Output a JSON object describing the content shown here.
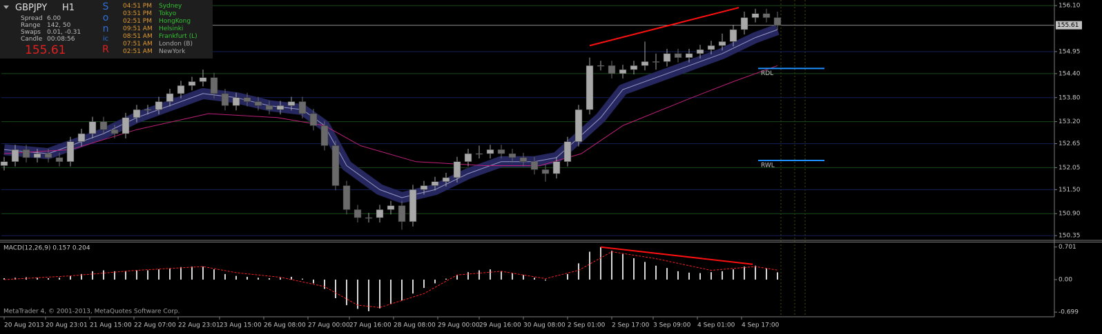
{
  "panel": {
    "symbol": "GBPJPY",
    "timeframe": "H1",
    "stats": [
      [
        "Spread",
        "6.00"
      ],
      [
        "Range",
        "142, 50"
      ],
      [
        "Swaps",
        "0.01, -0.31"
      ],
      [
        "Candle",
        "00:08:56"
      ]
    ],
    "price": "155.61",
    "brand": [
      {
        "text": "S",
        "color": "#2f6fd6"
      },
      {
        "text": "o",
        "color": "#2f6fd6"
      },
      {
        "text": "n",
        "color": "#2f6fd6"
      },
      {
        "text": "ic",
        "color": "#2f6fd6"
      },
      {
        "text": "R",
        "color": "#e02020"
      }
    ],
    "sessions": [
      {
        "time": "04:51 PM",
        "name": "Sydney",
        "color": "#33c033"
      },
      {
        "time": "03:51 PM",
        "name": "Tokyo",
        "color": "#33c033"
      },
      {
        "time": "02:51 PM",
        "name": "HongKong",
        "color": "#33c033"
      },
      {
        "time": "09:51 AM",
        "name": "Helsinki",
        "color": "#33c033"
      },
      {
        "time": "08:51 AM",
        "name": "Frankfurt (L)",
        "color": "#33c033"
      },
      {
        "time": "07:51 AM",
        "name": "London (B)",
        "color": "#a8a8a8"
      },
      {
        "time": "02:51 AM",
        "name": "NewYork",
        "color": "#a8a8a8"
      }
    ]
  },
  "footer": "MetaTrader 4, © 2001-2013, MetaQuotes Software Corp.",
  "chart_data": [
    {
      "type": "candlestick",
      "x": [
        0,
        4,
        8,
        12,
        16,
        20,
        24,
        28,
        32,
        36,
        40,
        44,
        48,
        52,
        56,
        60,
        64,
        68,
        72,
        76,
        80,
        84,
        88,
        92,
        96,
        100,
        104,
        108,
        112,
        116,
        120,
        124,
        128,
        132,
        136,
        140,
        144,
        148,
        152,
        156,
        160,
        164,
        168,
        172,
        176,
        180,
        184,
        188,
        192,
        196,
        200,
        204,
        208,
        212,
        216,
        220,
        224,
        228,
        232,
        236,
        240,
        244,
        248,
        252,
        256,
        260,
        264,
        268,
        272,
        276,
        280
      ],
      "open": [
        152.1,
        152.2,
        152.5,
        152.3,
        152.4,
        152.3,
        152.2,
        152.7,
        152.9,
        153.2,
        153.0,
        152.9,
        153.3,
        153.5,
        153.5,
        153.7,
        153.9,
        154.1,
        154.2,
        154.3,
        153.9,
        153.6,
        153.8,
        153.7,
        153.6,
        153.5,
        153.6,
        153.7,
        153.4,
        153.1,
        152.6,
        151.6,
        151.0,
        150.8,
        150.8,
        151.0,
        151.1,
        150.7,
        151.5,
        151.6,
        151.7,
        151.8,
        152.2,
        152.4,
        152.4,
        152.5,
        152.4,
        152.3,
        152.2,
        152.0,
        151.9,
        152.2,
        152.7,
        153.5,
        154.6,
        154.6,
        154.4,
        154.5,
        154.6,
        154.7,
        154.7,
        154.9,
        154.8,
        154.9,
        155.0,
        155.1,
        155.2,
        155.5,
        155.8,
        155.9,
        155.8
      ],
      "high": [
        152.32,
        152.62,
        152.62,
        152.52,
        152.52,
        152.42,
        152.82,
        153.02,
        153.32,
        153.32,
        153.12,
        153.42,
        153.62,
        153.62,
        153.82,
        154.02,
        154.22,
        154.32,
        154.5,
        154.42,
        154.02,
        153.92,
        153.92,
        153.82,
        153.72,
        153.72,
        153.82,
        153.82,
        153.52,
        153.22,
        152.72,
        151.72,
        151.12,
        150.92,
        151.12,
        151.22,
        151.22,
        151.62,
        151.72,
        151.82,
        151.92,
        152.32,
        152.52,
        152.6,
        152.62,
        152.62,
        152.52,
        152.42,
        152.32,
        152.12,
        152.32,
        152.82,
        153.62,
        154.8,
        154.72,
        154.72,
        154.62,
        154.72,
        155.2,
        154.9,
        155.02,
        155.02,
        155.02,
        155.12,
        155.22,
        155.4,
        155.62,
        155.95,
        156.02,
        156.02,
        155.95
      ],
      "low": [
        151.98,
        152.08,
        152.18,
        152.18,
        152.18,
        152.08,
        152.08,
        152.58,
        152.78,
        152.88,
        152.78,
        152.78,
        153.18,
        153.38,
        153.38,
        153.58,
        153.78,
        153.98,
        154.08,
        153.78,
        153.48,
        153.48,
        153.58,
        153.48,
        153.38,
        153.38,
        153.48,
        153.28,
        152.98,
        152.48,
        151.48,
        150.88,
        150.68,
        150.68,
        150.68,
        150.88,
        150.5,
        150.58,
        151.38,
        151.48,
        151.58,
        151.68,
        152.08,
        152.28,
        152.28,
        152.28,
        152.18,
        152.08,
        151.88,
        151.7,
        151.78,
        152.08,
        152.58,
        153.38,
        154.48,
        154.28,
        154.28,
        154.38,
        154.48,
        154.5,
        154.58,
        154.68,
        154.68,
        154.78,
        154.88,
        154.98,
        155.08,
        155.38,
        155.68,
        155.68,
        155.5
      ],
      "close": [
        152.2,
        152.5,
        152.3,
        152.4,
        152.3,
        152.2,
        152.7,
        152.9,
        153.2,
        153.0,
        152.9,
        153.3,
        153.5,
        153.5,
        153.7,
        153.9,
        154.1,
        154.2,
        154.3,
        153.9,
        153.6,
        153.8,
        153.7,
        153.6,
        153.5,
        153.6,
        153.7,
        153.4,
        153.1,
        152.6,
        151.6,
        151.0,
        150.8,
        150.8,
        151.0,
        151.1,
        150.7,
        151.5,
        151.6,
        151.7,
        151.8,
        152.2,
        152.4,
        152.4,
        152.5,
        152.4,
        152.3,
        152.2,
        152.0,
        151.9,
        152.2,
        152.7,
        153.5,
        154.6,
        154.6,
        154.4,
        154.5,
        154.6,
        154.7,
        154.7,
        154.9,
        154.8,
        154.9,
        155.0,
        155.1,
        155.2,
        155.5,
        155.8,
        155.9,
        155.8,
        155.61
      ],
      "up_color": "#a8a8a8",
      "down_color": "#6a6a6a",
      "lines": [
        {
          "style": "band",
          "color": "#25275e",
          "x": [
            0,
            16,
            24,
            36,
            48,
            60,
            72,
            84,
            96,
            108,
            116,
            124,
            136,
            144,
            156,
            168,
            180,
            192,
            200,
            208,
            216,
            224,
            236,
            248,
            260,
            272,
            280
          ],
          "values": [
            152.5,
            152.4,
            152.6,
            152.9,
            153.3,
            153.6,
            153.9,
            153.8,
            153.6,
            153.5,
            153.1,
            152.1,
            151.5,
            151.3,
            151.5,
            151.9,
            152.2,
            152.2,
            152.3,
            152.8,
            153.3,
            154.0,
            154.3,
            154.6,
            154.9,
            155.3,
            155.5
          ]
        },
        {
          "style": "line",
          "color": "#c0207a",
          "x": [
            0,
            24,
            48,
            74,
            99,
            116,
            129,
            149,
            174,
            194,
            209,
            224,
            249,
            264,
            280
          ],
          "values": [
            152.4,
            152.5,
            153.0,
            153.4,
            153.3,
            153.1,
            152.6,
            152.2,
            152.1,
            152.1,
            152.4,
            153.1,
            153.8,
            154.2,
            154.6
          ]
        }
      ],
      "levels": [
        {
          "label": "RDL",
          "value": 154.53,
          "x": [
            273,
            297
          ],
          "color": "#1e90ff"
        },
        {
          "label": "RWL",
          "value": 152.23,
          "x": [
            273,
            297
          ],
          "color": "#1e90ff"
        }
      ],
      "trendline": {
        "x": [
          212,
          266
        ],
        "values": [
          155.1,
          156.05
        ],
        "color": "#ff1010"
      },
      "current_price": {
        "value": 155.61,
        "label": "155.61"
      },
      "xlim": [
        -1,
        379.5
      ],
      "ylim": [
        150.25,
        156.24
      ],
      "yticks": [
        {
          "value": 156.1,
          "label": "156.10"
        },
        154.95,
        {
          "value": 154.4,
          "label": "154.40"
        },
        {
          "value": 153.8,
          "label": "153.80"
        },
        {
          "value": 153.2,
          "label": "153.20"
        },
        152.65,
        152.05,
        {
          "value": 151.5,
          "label": "151.50"
        },
        {
          "value": 150.9,
          "label": "150.90"
        },
        150.35
      ],
      "grid": true
    },
    {
      "type": "macd",
      "title": "MACD(12,26,9) 0.157 0.204",
      "x": [
        0,
        4,
        8,
        12,
        16,
        20,
        24,
        28,
        32,
        36,
        40,
        44,
        48,
        52,
        56,
        60,
        64,
        68,
        72,
        76,
        80,
        84,
        88,
        92,
        96,
        100,
        104,
        108,
        112,
        116,
        120,
        124,
        128,
        132,
        136,
        140,
        144,
        148,
        152,
        156,
        160,
        164,
        168,
        172,
        176,
        180,
        184,
        188,
        192,
        196,
        200,
        204,
        208,
        212,
        216,
        220,
        224,
        228,
        232,
        236,
        240,
        244,
        248,
        252,
        256,
        260,
        264,
        268,
        272,
        276,
        280
      ],
      "values": [
        0.03,
        0.04,
        0.05,
        0.04,
        0.03,
        0.04,
        0.08,
        0.12,
        0.18,
        0.2,
        0.18,
        0.18,
        0.2,
        0.2,
        0.22,
        0.24,
        0.27,
        0.28,
        0.28,
        0.22,
        0.12,
        0.08,
        0.06,
        0.04,
        0.03,
        0.04,
        0.06,
        0.02,
        -0.08,
        -0.2,
        -0.4,
        -0.55,
        -0.63,
        -0.68,
        -0.62,
        -0.52,
        -0.45,
        -0.3,
        -0.18,
        -0.08,
        0.02,
        0.1,
        0.16,
        0.2,
        0.22,
        0.18,
        0.14,
        0.1,
        0.04,
        -0.02,
        0.0,
        0.12,
        0.35,
        0.6,
        0.7,
        0.62,
        0.55,
        0.46,
        0.38,
        0.3,
        0.25,
        0.18,
        0.15,
        0.14,
        0.16,
        0.18,
        0.22,
        0.28,
        0.3,
        0.24,
        0.157
      ],
      "color": "#d8d8d8",
      "signal": {
        "color": "#ff2020",
        "x": [
          0,
          24,
          48,
          72,
          84,
          100,
          116,
          128,
          136,
          152,
          164,
          180,
          196,
          208,
          220,
          236,
          256,
          272,
          280
        ],
        "values": [
          0.0,
          0.08,
          0.2,
          0.28,
          0.15,
          0.05,
          -0.15,
          -0.55,
          -0.6,
          -0.3,
          0.1,
          0.18,
          0.02,
          0.2,
          0.6,
          0.45,
          0.2,
          0.28,
          0.204
        ]
      },
      "trendline": {
        "x": [
          216,
          271
        ],
        "values": [
          0.7,
          0.33
        ],
        "color": "#ff1010"
      },
      "xlim": [
        -1,
        379.5
      ],
      "ylim": [
        -0.8,
        0.8
      ],
      "yticks": [
        0.701,
        {
          "value": 0,
          "label": "0.00"
        },
        -0.699
      ],
      "xticks": [
        {
          "value": 0,
          "label": "20 Aug 2013"
        },
        {
          "value": 15,
          "label": "20 Aug 23:01"
        },
        {
          "value": 31,
          "label": "21 Aug 15:00"
        },
        {
          "value": 47,
          "label": "22 Aug 07:00"
        },
        {
          "value": 63,
          "label": "22 Aug 23:01"
        },
        {
          "value": 78,
          "label": "23 Aug 15:00"
        },
        {
          "value": 94,
          "label": "26 Aug 08:00"
        },
        {
          "value": 110,
          "label": "27 Aug 00:00"
        },
        {
          "value": 125,
          "label": "27 Aug 16:00"
        },
        {
          "value": 141,
          "label": "28 Aug 08:00"
        },
        {
          "value": 157,
          "label": "29 Aug 00:00"
        },
        {
          "value": 172,
          "label": "29 Aug 16:00"
        },
        {
          "value": 188,
          "label": "30 Aug 08:00"
        },
        {
          "value": 204,
          "label": "2 Sep 01:00"
        },
        {
          "value": 220,
          "label": "2 Sep 17:00"
        },
        {
          "value": 235,
          "label": "3 Sep 09:00"
        },
        {
          "value": 251,
          "label": "4 Sep 01:00"
        },
        {
          "value": 267,
          "label": "4 Sep 17:00"
        }
      ]
    }
  ]
}
